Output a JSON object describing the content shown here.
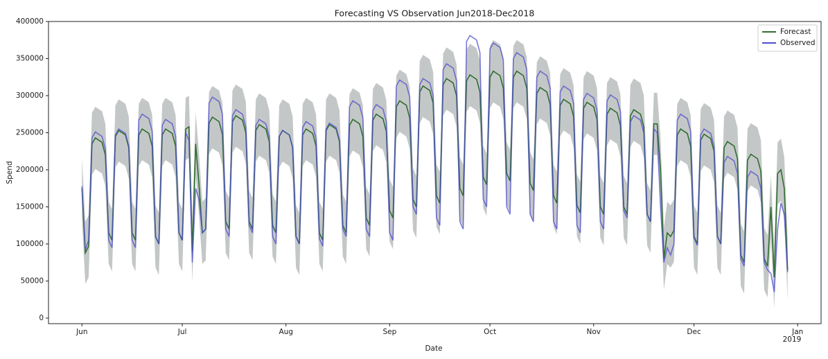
{
  "chart_data": {
    "type": "line",
    "title": "Forecasting VS Observation Jun2018-Dec2018",
    "x_label": "Date",
    "y_label": "Spend",
    "xaxis_offset_text": "2019",
    "xlim": [
      -10,
      221
    ],
    "ylim": [
      -7500,
      400000
    ],
    "xticks": [
      {
        "value": 0,
        "label": "Jun"
      },
      {
        "value": 30,
        "label": "Jul"
      },
      {
        "value": 61,
        "label": "Aug"
      },
      {
        "value": 92,
        "label": "Sep"
      },
      {
        "value": 122,
        "label": "Oct"
      },
      {
        "value": 153,
        "label": "Nov"
      },
      {
        "value": 183,
        "label": "Dec"
      },
      {
        "value": 214,
        "label": "Jan"
      }
    ],
    "yticks": [
      0,
      50000,
      100000,
      150000,
      200000,
      250000,
      300000,
      350000,
      400000
    ],
    "legend": "upper right",
    "x": [
      0,
      1,
      2,
      3,
      4,
      5,
      6,
      7,
      8,
      9,
      10,
      11,
      12,
      13,
      14,
      15,
      16,
      17,
      18,
      19,
      20,
      21,
      22,
      23,
      24,
      25,
      26,
      27,
      28,
      29,
      30,
      31,
      32,
      33,
      34,
      35,
      36,
      37,
      38,
      39,
      40,
      41,
      42,
      43,
      44,
      45,
      46,
      47,
      48,
      49,
      50,
      51,
      52,
      53,
      54,
      55,
      56,
      57,
      58,
      59,
      60,
      61,
      62,
      63,
      64,
      65,
      66,
      67,
      68,
      69,
      70,
      71,
      72,
      73,
      74,
      75,
      76,
      77,
      78,
      79,
      80,
      81,
      82,
      83,
      84,
      85,
      86,
      87,
      88,
      89,
      90,
      91,
      92,
      93,
      94,
      95,
      96,
      97,
      98,
      99,
      100,
      101,
      102,
      103,
      104,
      105,
      106,
      107,
      108,
      109,
      110,
      111,
      112,
      113,
      114,
      115,
      116,
      117,
      118,
      119,
      120,
      121,
      122,
      123,
      124,
      125,
      126,
      127,
      128,
      129,
      130,
      131,
      132,
      133,
      134,
      135,
      136,
      137,
      138,
      139,
      140,
      141,
      142,
      143,
      144,
      145,
      146,
      147,
      148,
      149,
      150,
      151,
      152,
      153,
      154,
      155,
      156,
      157,
      158,
      159,
      160,
      161,
      162,
      163,
      164,
      165,
      166,
      167,
      168,
      169,
      170,
      171,
      172,
      173,
      174,
      175,
      176,
      177,
      178,
      179,
      180,
      181,
      182,
      183,
      184,
      185,
      186,
      187,
      188,
      189,
      190,
      191,
      192,
      193,
      194,
      195,
      196,
      197,
      198,
      199,
      200,
      201,
      202,
      203,
      204,
      205,
      206,
      207,
      208,
      209,
      210,
      211
    ],
    "band": {
      "color": "#9da2a2",
      "lower": [
        133000,
        46000,
        55000,
        193000,
        201000,
        198000,
        195000,
        178000,
        73000,
        63000,
        203000,
        211000,
        208000,
        205000,
        188000,
        73000,
        63000,
        205000,
        213000,
        210000,
        207000,
        190000,
        68000,
        58000,
        205000,
        213000,
        210000,
        207000,
        190000,
        73000,
        63000,
        213000,
        216000,
        48000,
        193000,
        138000,
        73000,
        78000,
        221000,
        229000,
        226000,
        223000,
        206000,
        88000,
        78000,
        223000,
        231000,
        228000,
        225000,
        208000,
        88000,
        78000,
        211000,
        219000,
        216000,
        213000,
        196000,
        83000,
        73000,
        203000,
        211000,
        208000,
        205000,
        188000,
        68000,
        58000,
        205000,
        213000,
        210000,
        207000,
        190000,
        73000,
        63000,
        211000,
        219000,
        216000,
        213000,
        196000,
        83000,
        73000,
        218000,
        226000,
        223000,
        220000,
        203000,
        93000,
        83000,
        225000,
        233000,
        230000,
        227000,
        210000,
        103000,
        93000,
        243000,
        251000,
        248000,
        245000,
        228000,
        118000,
        108000,
        263000,
        271000,
        268000,
        265000,
        248000,
        123000,
        113000,
        273000,
        281000,
        278000,
        275000,
        258000,
        133000,
        123000,
        278000,
        286000,
        283000,
        280000,
        263000,
        148000,
        138000,
        283000,
        291000,
        288000,
        285000,
        268000,
        153000,
        143000,
        283000,
        291000,
        288000,
        285000,
        268000,
        140000,
        130000,
        261000,
        269000,
        266000,
        263000,
        246000,
        123000,
        113000,
        245000,
        253000,
        250000,
        247000,
        230000,
        110000,
        100000,
        241000,
        249000,
        246000,
        243000,
        226000,
        108000,
        98000,
        233000,
        241000,
        238000,
        235000,
        218000,
        108000,
        98000,
        231000,
        239000,
        236000,
        233000,
        216000,
        98000,
        88000,
        220000,
        220000,
        158000,
        38000,
        73000,
        68000,
        76000,
        205000,
        213000,
        210000,
        207000,
        190000,
        68000,
        58000,
        198000,
        206000,
        203000,
        200000,
        183000,
        68000,
        58000,
        188000,
        196000,
        193000,
        190000,
        173000,
        43000,
        33000,
        171000,
        179000,
        176000,
        173000,
        156000,
        38000,
        28000,
        108000,
        13000,
        153000,
        158000,
        133000,
        23000
      ],
      "upper": [
        217000,
        130000,
        139000,
        277000,
        285000,
        282000,
        279000,
        262000,
        157000,
        147000,
        287000,
        295000,
        292000,
        289000,
        272000,
        157000,
        147000,
        289000,
        297000,
        294000,
        291000,
        274000,
        152000,
        142000,
        289000,
        297000,
        294000,
        291000,
        274000,
        157000,
        147000,
        297000,
        300000,
        132000,
        277000,
        222000,
        157000,
        162000,
        305000,
        313000,
        310000,
        307000,
        290000,
        172000,
        162000,
        307000,
        315000,
        312000,
        309000,
        292000,
        172000,
        162000,
        295000,
        303000,
        300000,
        297000,
        280000,
        167000,
        157000,
        287000,
        295000,
        292000,
        289000,
        272000,
        152000,
        142000,
        289000,
        297000,
        294000,
        291000,
        274000,
        157000,
        147000,
        295000,
        303000,
        300000,
        297000,
        280000,
        167000,
        157000,
        302000,
        310000,
        307000,
        304000,
        287000,
        177000,
        167000,
        309000,
        317000,
        314000,
        311000,
        294000,
        187000,
        177000,
        327000,
        335000,
        332000,
        329000,
        312000,
        202000,
        192000,
        347000,
        355000,
        352000,
        349000,
        332000,
        207000,
        197000,
        357000,
        365000,
        362000,
        359000,
        342000,
        217000,
        207000,
        362000,
        370000,
        367000,
        364000,
        347000,
        232000,
        222000,
        367000,
        375000,
        372000,
        369000,
        352000,
        237000,
        227000,
        367000,
        375000,
        372000,
        369000,
        352000,
        224000,
        214000,
        345000,
        353000,
        350000,
        347000,
        330000,
        207000,
        197000,
        329000,
        337000,
        334000,
        331000,
        314000,
        194000,
        184000,
        325000,
        333000,
        330000,
        327000,
        310000,
        192000,
        182000,
        317000,
        325000,
        322000,
        319000,
        302000,
        192000,
        182000,
        315000,
        323000,
        320000,
        317000,
        300000,
        182000,
        172000,
        304000,
        304000,
        242000,
        122000,
        157000,
        152000,
        160000,
        289000,
        297000,
        294000,
        291000,
        274000,
        152000,
        142000,
        282000,
        290000,
        287000,
        284000,
        267000,
        152000,
        142000,
        272000,
        280000,
        277000,
        274000,
        257000,
        127000,
        117000,
        255000,
        263000,
        260000,
        257000,
        240000,
        122000,
        112000,
        192000,
        97000,
        237000,
        242000,
        217000,
        107000
      ]
    },
    "series": [
      {
        "name": "Forecast",
        "color": "#2f6e2f",
        "values": [
          175000,
          88000,
          97000,
          235000,
          243000,
          240000,
          237000,
          220000,
          115000,
          105000,
          245000,
          253000,
          250000,
          247000,
          230000,
          115000,
          105000,
          247000,
          255000,
          252000,
          249000,
          232000,
          110000,
          100000,
          247000,
          255000,
          252000,
          249000,
          232000,
          115000,
          105000,
          255000,
          258000,
          90000,
          235000,
          180000,
          115000,
          120000,
          263000,
          271000,
          268000,
          265000,
          248000,
          130000,
          120000,
          265000,
          273000,
          270000,
          267000,
          250000,
          130000,
          120000,
          253000,
          261000,
          258000,
          255000,
          238000,
          125000,
          115000,
          245000,
          253000,
          250000,
          247000,
          230000,
          110000,
          100000,
          247000,
          255000,
          252000,
          249000,
          232000,
          115000,
          105000,
          253000,
          261000,
          258000,
          255000,
          238000,
          125000,
          115000,
          260000,
          268000,
          265000,
          262000,
          245000,
          135000,
          125000,
          267000,
          275000,
          272000,
          269000,
          252000,
          145000,
          135000,
          285000,
          293000,
          290000,
          287000,
          270000,
          160000,
          150000,
          305000,
          313000,
          310000,
          307000,
          290000,
          165000,
          155000,
          315000,
          323000,
          320000,
          317000,
          300000,
          175000,
          165000,
          320000,
          328000,
          325000,
          322000,
          305000,
          190000,
          180000,
          325000,
          333000,
          330000,
          327000,
          310000,
          195000,
          185000,
          325000,
          333000,
          330000,
          327000,
          310000,
          182000,
          172000,
          303000,
          311000,
          308000,
          305000,
          288000,
          165000,
          155000,
          287000,
          295000,
          292000,
          289000,
          272000,
          152000,
          142000,
          283000,
          291000,
          288000,
          285000,
          268000,
          150000,
          140000,
          275000,
          283000,
          280000,
          277000,
          260000,
          150000,
          140000,
          273000,
          281000,
          278000,
          275000,
          258000,
          140000,
          130000,
          262000,
          262000,
          200000,
          80000,
          115000,
          110000,
          118000,
          247000,
          255000,
          252000,
          249000,
          232000,
          110000,
          100000,
          240000,
          248000,
          245000,
          242000,
          225000,
          110000,
          100000,
          230000,
          238000,
          235000,
          232000,
          215000,
          85000,
          75000,
          213000,
          221000,
          218000,
          215000,
          198000,
          80000,
          70000,
          150000,
          55000,
          195000,
          200000,
          175000,
          65000
        ]
      },
      {
        "name": "Observed",
        "color": "#4d4dcc",
        "values": [
          178000,
          92000,
          105000,
          243000,
          251000,
          248000,
          245000,
          228000,
          105000,
          95000,
          247000,
          255000,
          252000,
          249000,
          232000,
          105000,
          95000,
          267000,
          275000,
          272000,
          269000,
          252000,
          110000,
          100000,
          260000,
          268000,
          265000,
          262000,
          245000,
          115000,
          105000,
          250000,
          240000,
          75000,
          175000,
          160000,
          115000,
          120000,
          290000,
          298000,
          295000,
          292000,
          275000,
          120000,
          110000,
          273000,
          281000,
          278000,
          275000,
          258000,
          125000,
          115000,
          260000,
          268000,
          265000,
          262000,
          245000,
          110000,
          100000,
          245000,
          253000,
          250000,
          247000,
          230000,
          110000,
          100000,
          257000,
          265000,
          262000,
          259000,
          242000,
          107000,
          97000,
          255000,
          263000,
          260000,
          257000,
          240000,
          120000,
          110000,
          285000,
          293000,
          290000,
          287000,
          270000,
          120000,
          110000,
          280000,
          288000,
          285000,
          282000,
          265000,
          115000,
          105000,
          313000,
          321000,
          318000,
          315000,
          298000,
          150000,
          140000,
          315000,
          323000,
          320000,
          317000,
          300000,
          135000,
          125000,
          335000,
          343000,
          340000,
          337000,
          320000,
          130000,
          120000,
          373000,
          381000,
          378000,
          375000,
          358000,
          160000,
          150000,
          363000,
          371000,
          368000,
          365000,
          348000,
          150000,
          140000,
          350000,
          358000,
          355000,
          352000,
          335000,
          140000,
          130000,
          325000,
          333000,
          330000,
          327000,
          310000,
          130000,
          120000,
          305000,
          313000,
          310000,
          307000,
          290000,
          125000,
          115000,
          295000,
          303000,
          300000,
          297000,
          280000,
          130000,
          120000,
          293000,
          301000,
          298000,
          295000,
          278000,
          145000,
          135000,
          265000,
          273000,
          270000,
          267000,
          250000,
          140000,
          130000,
          255000,
          250000,
          150000,
          75000,
          95000,
          85000,
          100000,
          267000,
          275000,
          272000,
          269000,
          252000,
          108000,
          98000,
          247000,
          255000,
          252000,
          249000,
          232000,
          110000,
          100000,
          210000,
          218000,
          215000,
          212000,
          195000,
          80000,
          70000,
          190000,
          198000,
          195000,
          192000,
          175000,
          75000,
          65000,
          60000,
          35000,
          120000,
          155000,
          140000,
          62000
        ]
      }
    ]
  }
}
